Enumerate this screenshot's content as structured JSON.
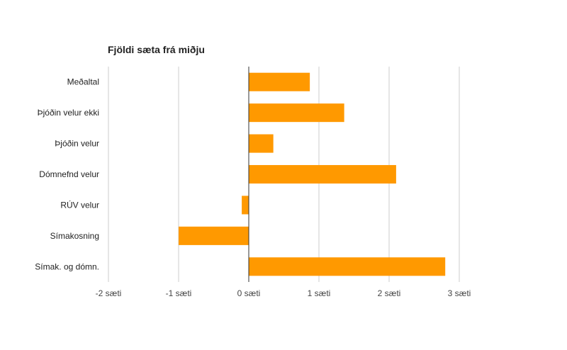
{
  "chart_data": {
    "type": "bar",
    "orientation": "horizontal",
    "title": "Fjöldi sæta frá miðju",
    "xlabel": "",
    "ylabel": "",
    "categories": [
      "Meðaltal",
      "Þjóðin velur ekki",
      "Þjóðin velur",
      "Dómnefnd velur",
      "RÚV velur",
      "Símakosning",
      "Símak. og dómn."
    ],
    "values": [
      0.87,
      1.36,
      0.35,
      2.1,
      -0.1,
      -1.0,
      2.8
    ],
    "xlim": [
      -2,
      3
    ],
    "xticks": [
      -2,
      -1,
      0,
      1,
      2,
      3
    ],
    "xtick_labels": [
      "-2 sæti",
      "-1 sæti",
      "0 sæti",
      "1 sæti",
      "2 sæti",
      "3 sæti"
    ],
    "bar_color": "#ff9900",
    "grid": true,
    "legend": "none"
  }
}
